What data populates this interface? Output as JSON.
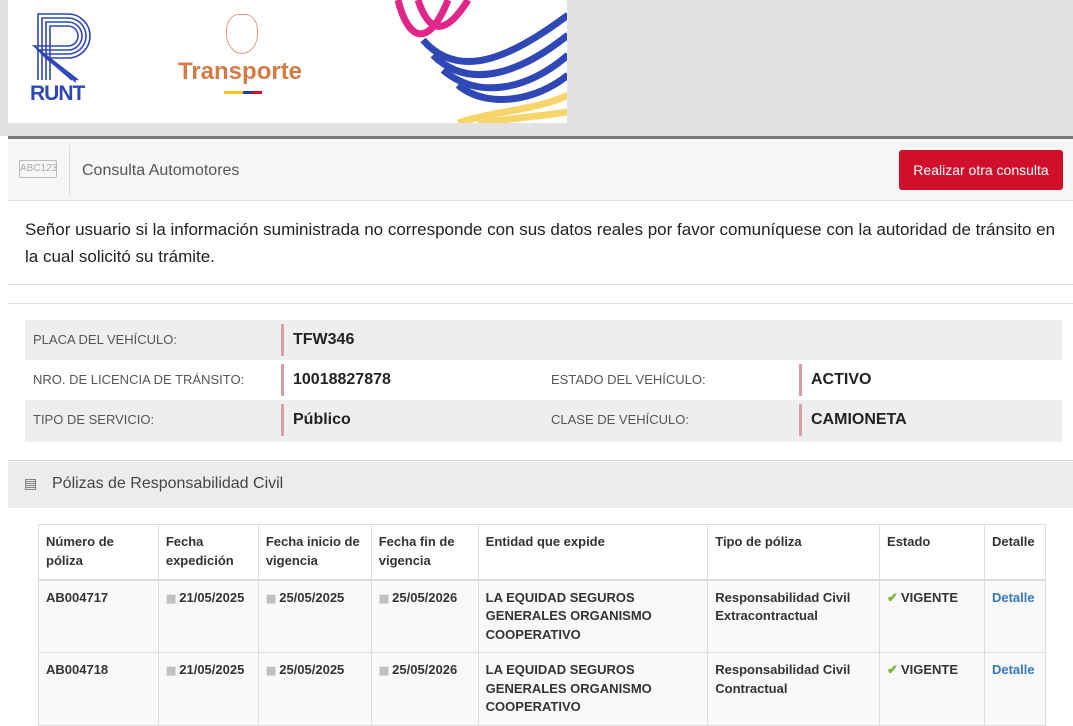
{
  "header": {
    "runt_logo": "RUNT",
    "ministry_logo": "Transporte"
  },
  "titlebar": {
    "plate_icon": "ABC123",
    "title": "Consulta Automotores",
    "new_query_button": "Realizar otra consulta"
  },
  "notice": "Señor usuario si la información suministrada no corresponde con sus datos reales por favor comuníquese con la autoridad de tránsito en la cual solicitó su trámite.",
  "vehicle": {
    "plate_label": "PLACA DEL VEHÍCULO:",
    "plate": "TFW346",
    "license_label": "NRO. DE LICENCIA DE TRÁNSITO:",
    "license": "10018827878",
    "status_label": "ESTADO DEL VEHÍCULO:",
    "status": "ACTIVO",
    "service_label": "TIPO DE SERVICIO:",
    "service": "Público",
    "class_label": "CLASE DE VEHÍCULO:",
    "class": "CAMIONETA"
  },
  "section": {
    "title": "Pólizas de Responsabilidad Civil",
    "icon": "list-icon"
  },
  "policies": {
    "headers": [
      "Número de póliza",
      "Fecha expedición",
      "Fecha inicio de vigencia",
      "Fecha fin de vigencia",
      "Entidad que expide",
      "Tipo de póliza",
      "Estado",
      "Detalle"
    ],
    "rows": [
      {
        "number": "AB004717",
        "issued": "21/05/2025",
        "start": "25/05/2025",
        "end": "25/05/2026",
        "entity": "LA EQUIDAD SEGUROS GENERALES ORGANISMO COOPERATIVO",
        "type": "Responsabilidad Civil Extracontractual",
        "status": "VIGENTE",
        "detail": "Detalle"
      },
      {
        "number": "AB004718",
        "issued": "21/05/2025",
        "start": "25/05/2025",
        "end": "25/05/2026",
        "entity": "LA EQUIDAD SEGUROS GENERALES ORGANISMO COOPERATIVO",
        "type": "Responsabilidad Civil Contractual",
        "status": "VIGENTE",
        "detail": "Detalle"
      }
    ]
  },
  "colors": {
    "accent_red": "#d0102a",
    "status_green": "#7ab33a",
    "link": "#337ab7",
    "runt_blue": "#2f48b5",
    "transporte_orange": "#d47a45"
  }
}
